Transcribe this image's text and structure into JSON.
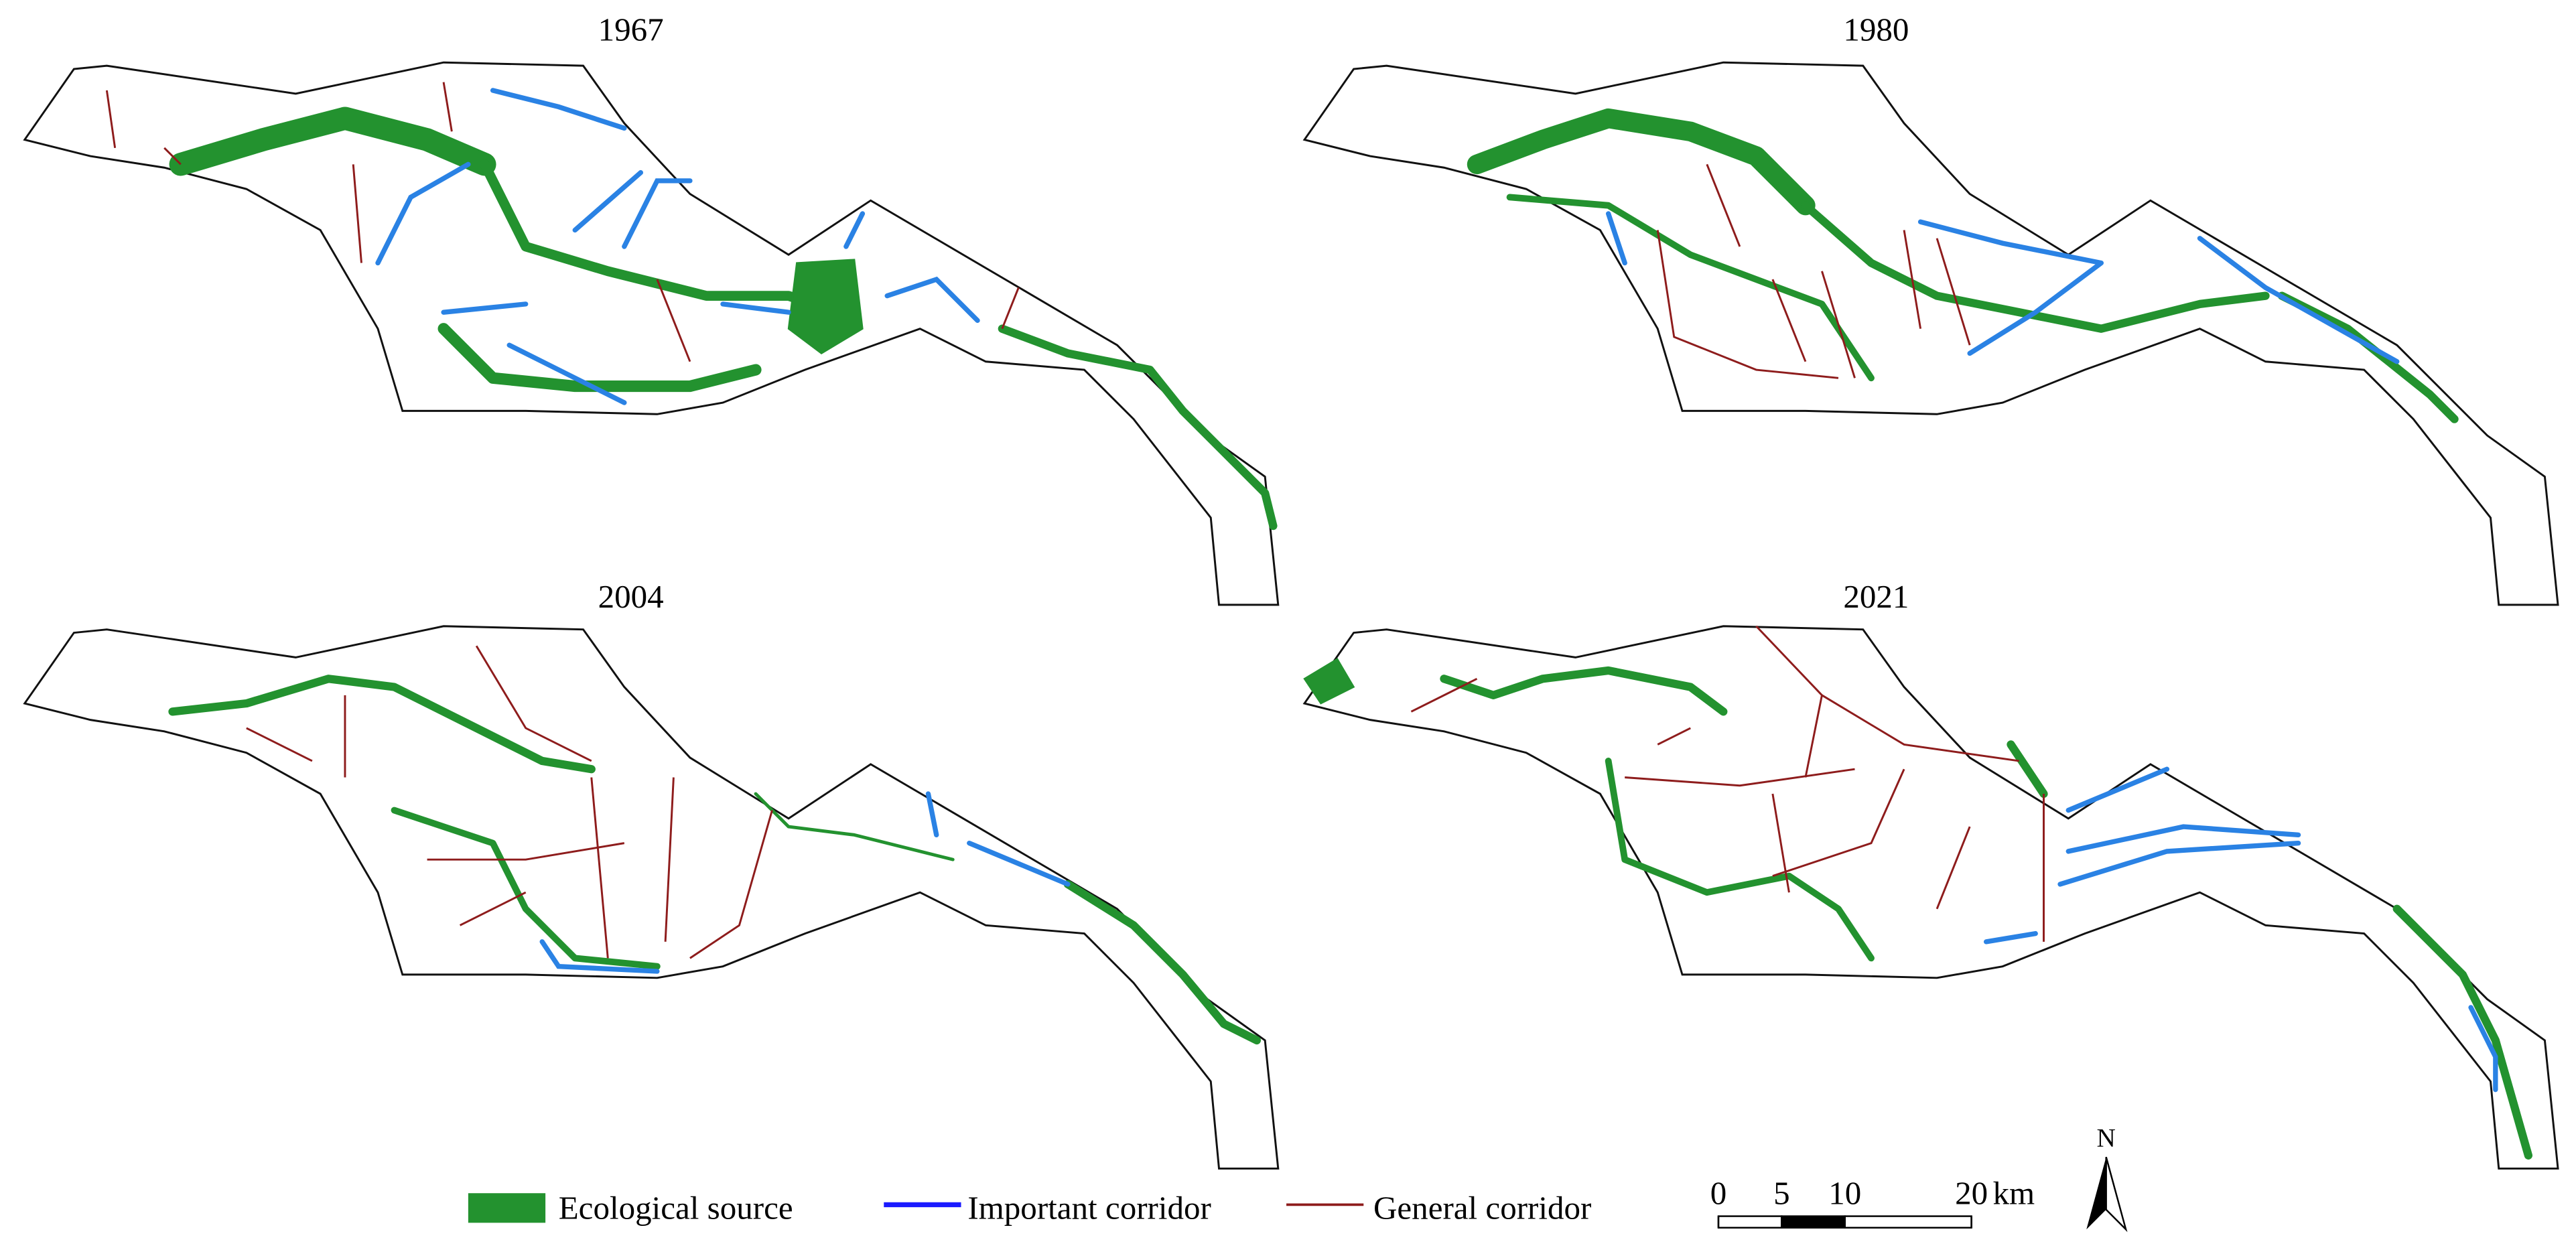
{
  "panels": [
    {
      "title": "1967"
    },
    {
      "title": "1980"
    },
    {
      "title": "2004"
    },
    {
      "title": "2021"
    }
  ],
  "legend": [
    {
      "label": "Ecological source"
    },
    {
      "label": "Important corridor"
    },
    {
      "label": "General corridor"
    }
  ],
  "scale_bar": {
    "ticks": [
      0,
      5,
      10,
      20
    ],
    "unit": "km"
  },
  "north_arrow": {
    "label": "N"
  }
}
